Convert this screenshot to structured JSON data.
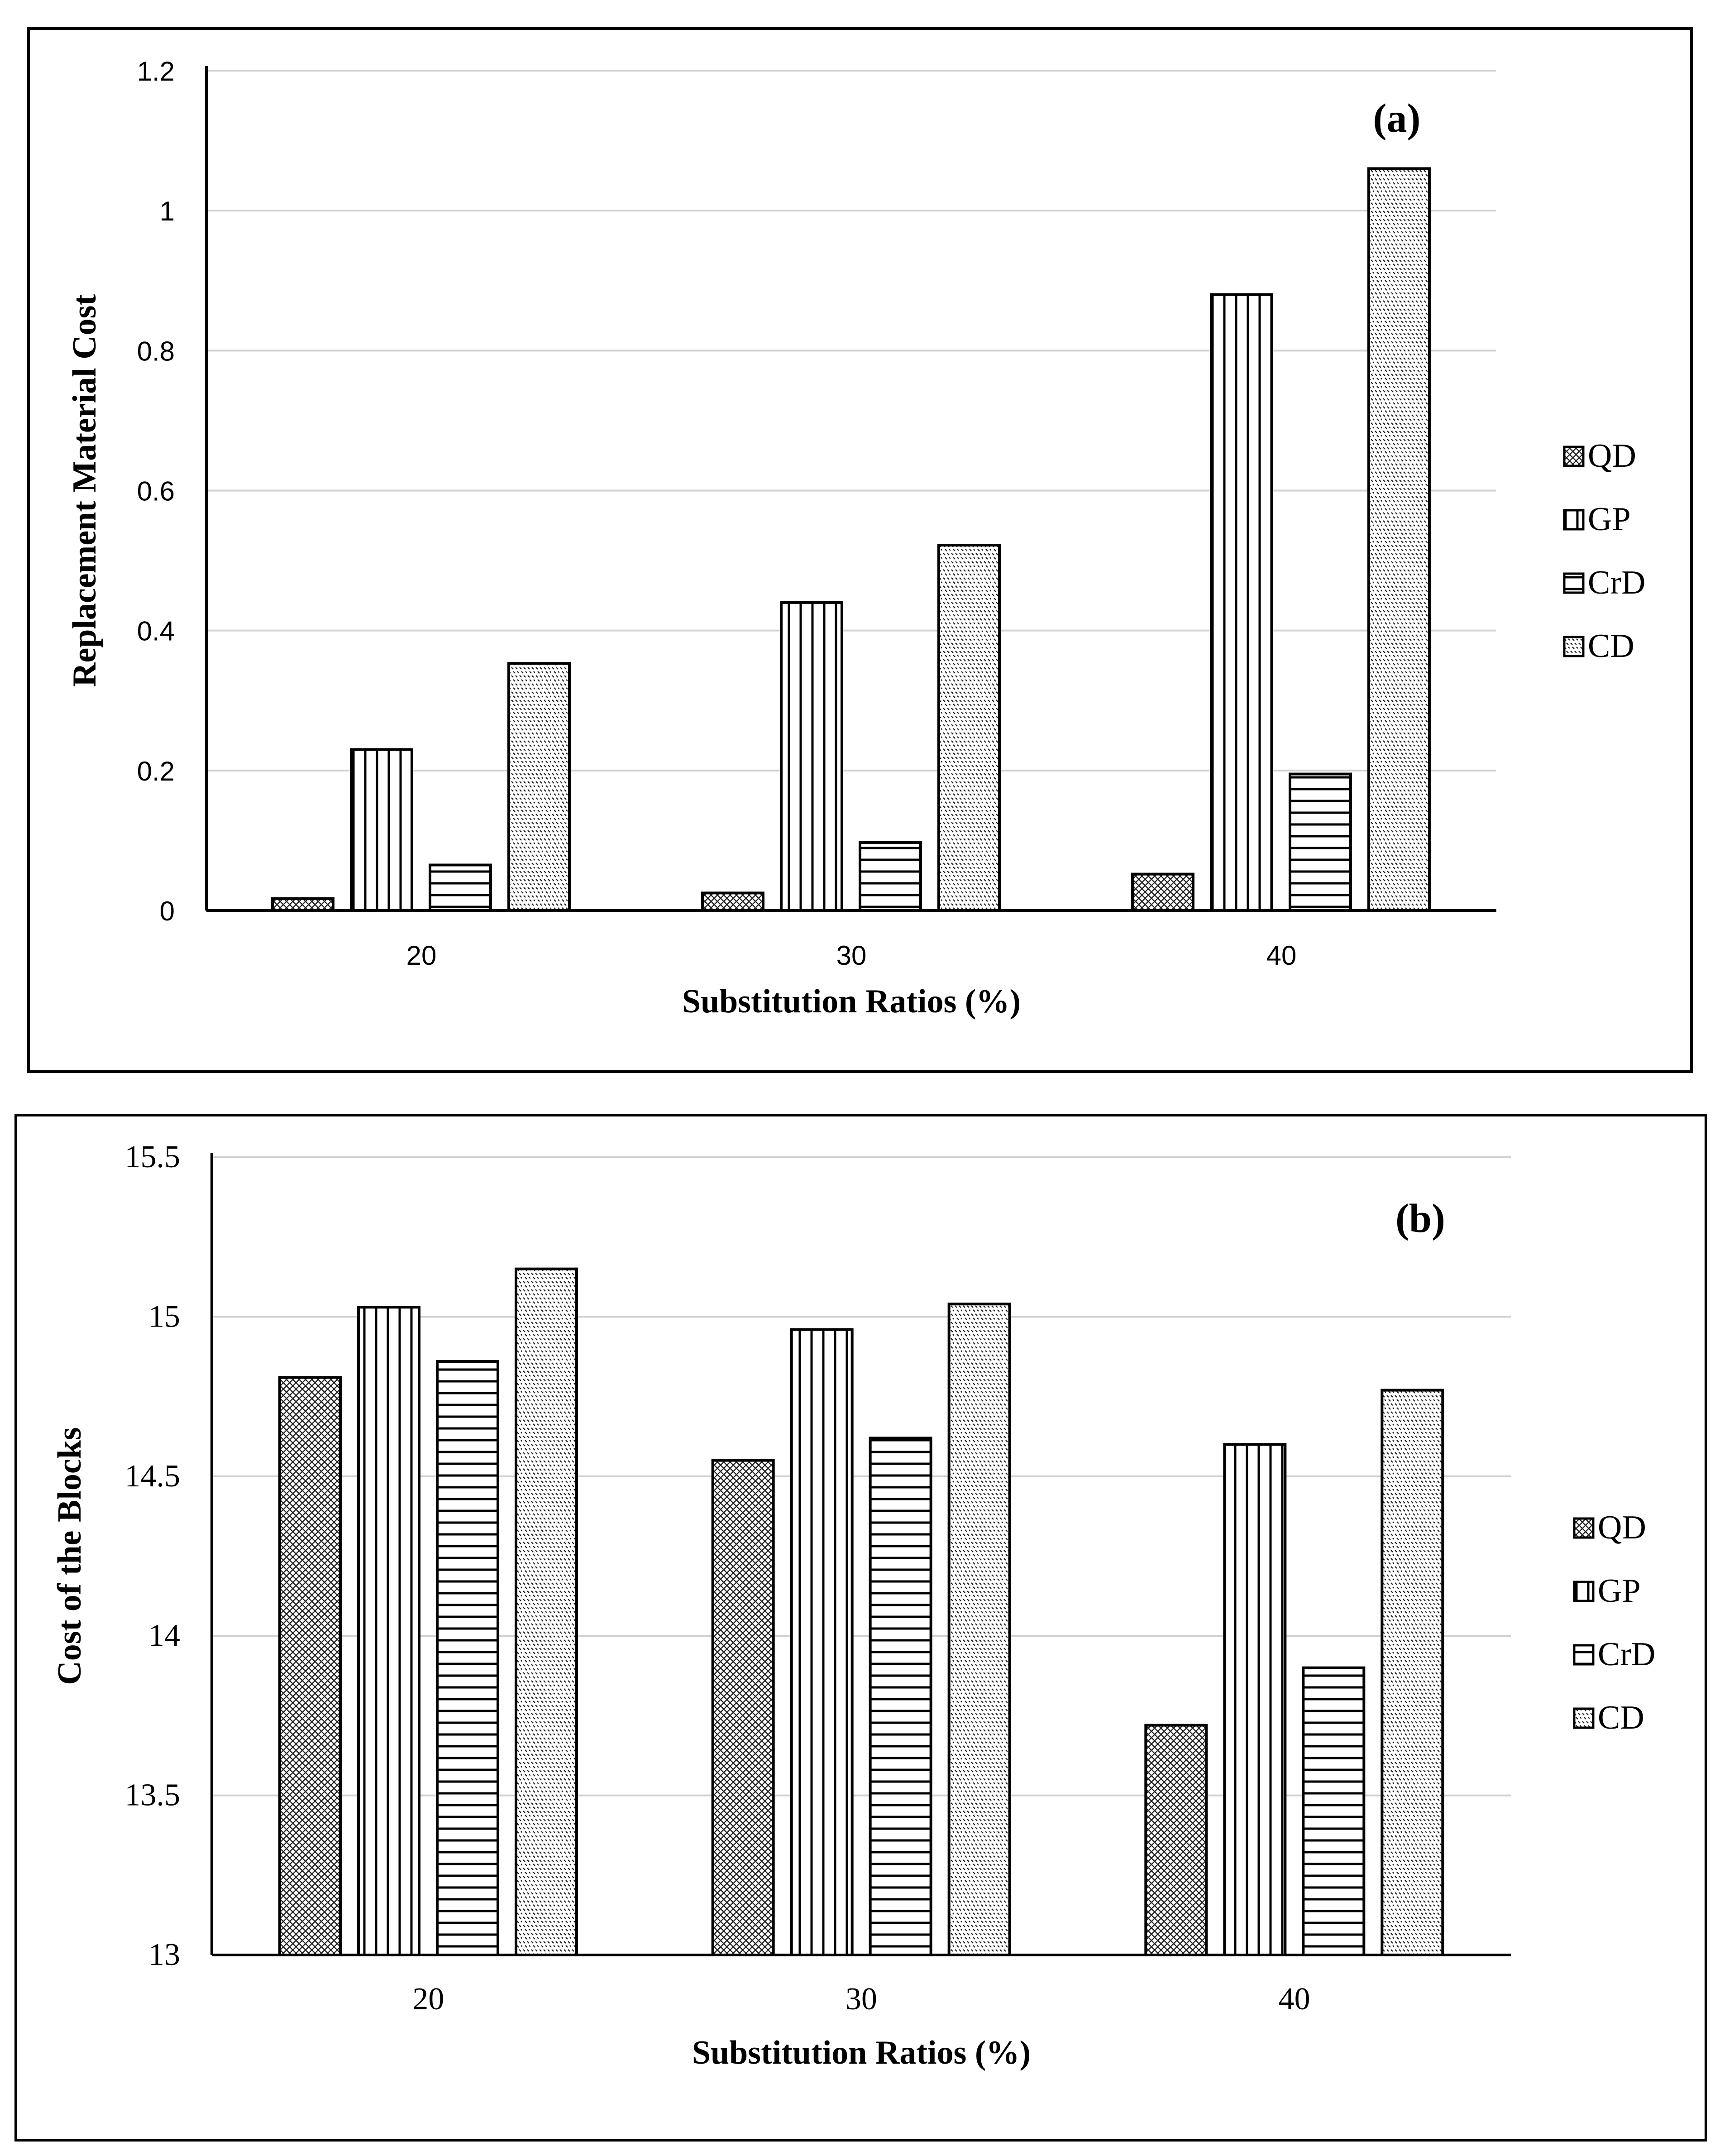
{
  "chart_data": [
    {
      "type": "bar",
      "panel_label": "(a)",
      "title": "",
      "xlabel": "Substitution Ratios (%)",
      "ylabel": "Replacement Material Cost",
      "categories": [
        "20",
        "30",
        "40"
      ],
      "ylim": [
        0,
        1.2
      ],
      "yticks": [
        "0",
        "0.2",
        "0.4",
        "0.6",
        "0.8",
        "1",
        "1.2"
      ],
      "grid": true,
      "legend_position": "right",
      "series": [
        {
          "name": "QD",
          "pattern": "crosshatch",
          "values": [
            0.017,
            0.025,
            0.052
          ]
        },
        {
          "name": "GP",
          "pattern": "vertical",
          "values": [
            0.23,
            0.44,
            0.88
          ]
        },
        {
          "name": "CrD",
          "pattern": "horizontal",
          "values": [
            0.065,
            0.097,
            0.195
          ]
        },
        {
          "name": "CD",
          "pattern": "dots",
          "values": [
            0.353,
            0.522,
            1.06
          ]
        }
      ]
    },
    {
      "type": "bar",
      "panel_label": "(b)",
      "title": "",
      "xlabel": "Substitution Ratios (%)",
      "ylabel": "Cost of the Blocks",
      "categories": [
        "20",
        "30",
        "40"
      ],
      "ylim": [
        13,
        15.5
      ],
      "yticks": [
        "13",
        "13.5",
        "14",
        "14.5",
        "15",
        "15.5"
      ],
      "grid": true,
      "legend_position": "right",
      "series": [
        {
          "name": "QD",
          "pattern": "crosshatch",
          "values": [
            14.81,
            14.55,
            13.72
          ]
        },
        {
          "name": "GP",
          "pattern": "vertical",
          "values": [
            15.03,
            14.96,
            14.6
          ]
        },
        {
          "name": "CrD",
          "pattern": "horizontal",
          "values": [
            14.86,
            14.62,
            13.9
          ]
        },
        {
          "name": "CD",
          "pattern": "dots",
          "values": [
            15.15,
            15.04,
            14.77
          ]
        }
      ]
    }
  ]
}
